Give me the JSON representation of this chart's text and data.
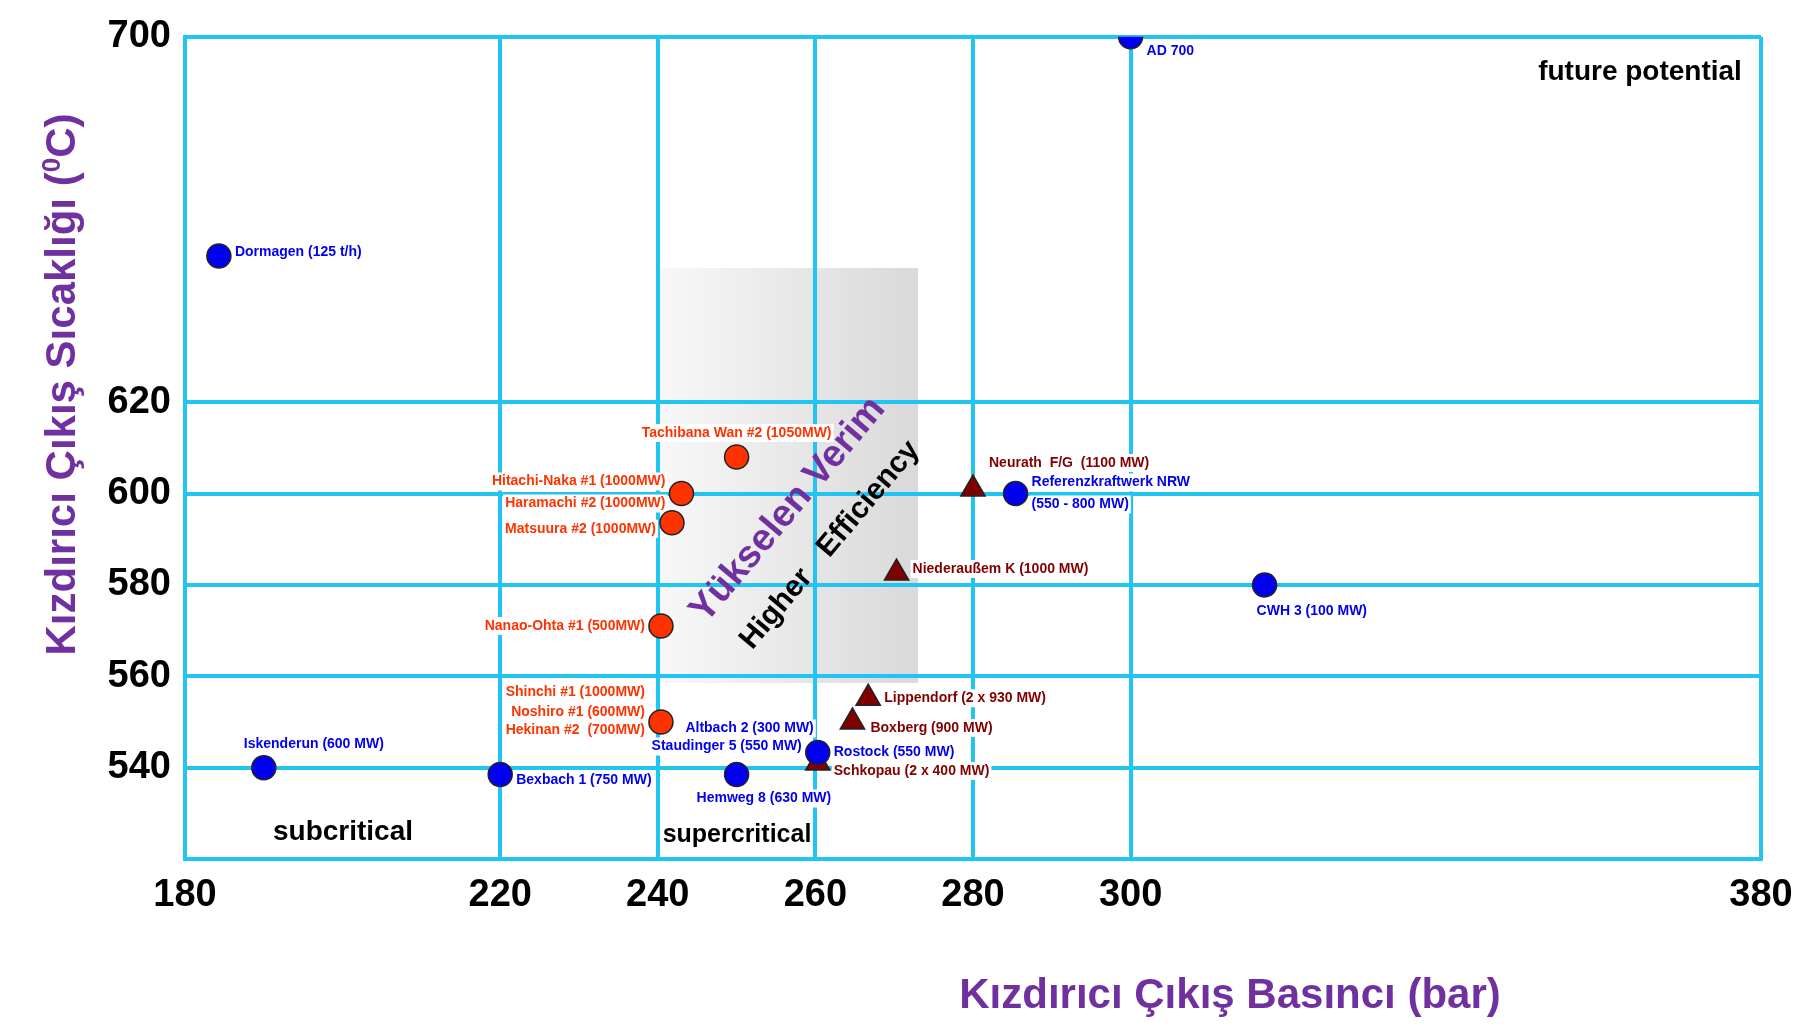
{
  "chart_data": {
    "type": "scatter",
    "xlabel": "Kızdırıcı Çıkış Basıncı (bar)",
    "ylabel": "Kızdırıcı Çıkış Sıcaklığı ($^{0}$C)",
    "xlim": [
      180,
      380
    ],
    "xticks": [
      180,
      220,
      240,
      260,
      280,
      300,
      380
    ],
    "ylim": [
      520,
      700
    ],
    "yticks": [
      540,
      560,
      580,
      600,
      620,
      700
    ],
    "grid": true,
    "series": [
      {
        "color": "#ff3300",
        "marker": "circle",
        "x": [
          250,
          243,
          241.8,
          240.4,
          240.4
        ],
        "values": [
          608,
          600,
          593.6,
          571,
          550
        ]
      },
      {
        "color": "#0000ee",
        "marker": "circle",
        "x": [
          184.3,
          300,
          285.4,
          317,
          190,
          220,
          250,
          260.3
        ],
        "values": [
          652,
          700,
          600,
          580,
          540,
          538.5,
          538.5,
          543.3
        ]
      },
      {
        "color": "#800000",
        "marker": "triangle",
        "x": [
          280,
          270.3,
          266.7,
          264.7,
          260.3
        ],
        "values": [
          601,
          582.6,
          555.2,
          550,
          541
        ]
      }
    ],
    "annotations": [
      {
        "text": "Dormagen (125 t/h)",
        "x": 184.3,
        "y": 652
      },
      {
        "text": "Tachibana Wan #2 (1050MW)",
        "x": 250,
        "y": 608
      },
      {
        "text": "Hitachi-Naka #1 (1000MW)",
        "x": 243,
        "y": 600
      },
      {
        "text": "Haramachi #2 (1000MW)",
        "x": 243,
        "y": 600
      },
      {
        "text": "Matsuura #2 (1000MW)",
        "x": 241.8,
        "y": 593.6
      },
      {
        "text": "Nanao-Ohta #1 (500MW)",
        "x": 240.4,
        "y": 571
      },
      {
        "text": "Shinchi #1 (1000MW)",
        "x": 240.4,
        "y": 550
      },
      {
        "text": "Noshiro #1 (600MW)",
        "x": 240.4,
        "y": 550
      },
      {
        "text": "Hekinan #2  (700MW)",
        "x": 240.4,
        "y": 550
      },
      {
        "text": "AD 700",
        "x": 300,
        "y": 700
      },
      {
        "text": "Referenzkraftwerk NRW",
        "x": 285.4,
        "y": 600
      },
      {
        "text": "(550 - 800 MW)",
        "x": 285.4,
        "y": 600
      },
      {
        "text": "CWH 3 (100 MW)",
        "x": 317,
        "y": 580
      },
      {
        "text": "Iskenderun (600 MW)",
        "x": 190,
        "y": 540
      },
      {
        "text": "Bexbach 1 (750 MW)",
        "x": 220,
        "y": 538.5
      },
      {
        "text": "Hemweg 8 (630 MW)",
        "x": 250,
        "y": 538.5
      },
      {
        "text": "Altbach 2 (300 MW)",
        "x": 260.3,
        "y": 543.3
      },
      {
        "text": "Staudinger 5 (550 MW)",
        "x": 260.3,
        "y": 543.3
      },
      {
        "text": "Rostock (550 MW)",
        "x": 260.3,
        "y": 543.3
      },
      {
        "text": "Neurath  F/G  (1100 MW)",
        "x": 280,
        "y": 601
      },
      {
        "text": "Niederaußem K (1000 MW)",
        "x": 270.3,
        "y": 582.6
      },
      {
        "text": "Lippendorf (2 x 930 MW)",
        "x": 266.7,
        "y": 555.2
      },
      {
        "text": "Boxberg (900 MW)",
        "x": 264.7,
        "y": 550
      },
      {
        "text": "Schkopau (2 x 400 MW)",
        "x": 260.3,
        "y": 541
      },
      "subcritical",
      "supercritical",
      "future potential",
      "Yükselen Verim",
      "Higher   Efficiency"
    ]
  }
}
